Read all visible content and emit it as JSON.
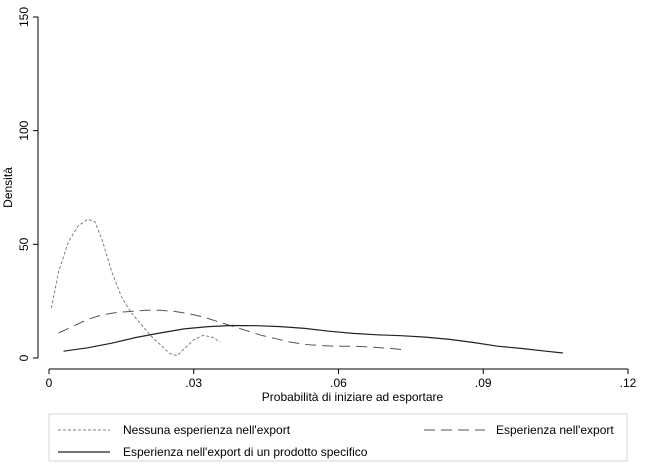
{
  "chart_data": {
    "type": "line",
    "title": "",
    "xlabel": "Probabilità di iniziare ad esportare",
    "ylabel": "Densità",
    "xlim": [
      0,
      0.12
    ],
    "ylim": [
      0,
      150
    ],
    "x_ticks": [
      0,
      0.03,
      0.06,
      0.09,
      0.12
    ],
    "x_tick_labels": [
      "0",
      ".03",
      ".06",
      ".09",
      ".12"
    ],
    "y_ticks": [
      0,
      50,
      100,
      150
    ],
    "y_tick_labels": [
      "0",
      "50",
      "100",
      "150"
    ],
    "grid": false,
    "legend_position": "bottom",
    "series": [
      {
        "name": "Nessuna esperienza nell'export",
        "style": "short-dash",
        "color": "#808080",
        "x": [
          0.0005,
          0.002,
          0.004,
          0.006,
          0.008,
          0.0095,
          0.011,
          0.013,
          0.015,
          0.017,
          0.019,
          0.021,
          0.023,
          0.025,
          0.0265,
          0.028,
          0.03,
          0.032,
          0.034,
          0.0355
        ],
        "y": [
          22,
          38,
          51,
          58,
          61,
          60,
          52,
          38,
          27,
          20,
          15,
          10,
          6,
          2,
          1,
          4,
          8,
          10,
          9,
          7
        ]
      },
      {
        "name": "Esperienza nell'export",
        "style": "long-dash",
        "color": "#555555",
        "x": [
          0.002,
          0.005,
          0.008,
          0.011,
          0.014,
          0.017,
          0.02,
          0.023,
          0.026,
          0.029,
          0.032,
          0.035,
          0.038,
          0.041,
          0.044,
          0.047,
          0.05,
          0.053,
          0.056,
          0.059,
          0.062,
          0.065,
          0.068,
          0.071,
          0.074
        ],
        "y": [
          11,
          14,
          17,
          19,
          20,
          20.5,
          21,
          21,
          20.5,
          19.5,
          18,
          16,
          14,
          12,
          10,
          8.5,
          7,
          6,
          5.5,
          5.2,
          5.2,
          5,
          4.6,
          4.2,
          3.5
        ]
      },
      {
        "name": "Esperienza nell'export di un prodotto specifico",
        "style": "solid",
        "color": "#222222",
        "x": [
          0.003,
          0.008,
          0.013,
          0.018,
          0.023,
          0.028,
          0.033,
          0.038,
          0.043,
          0.048,
          0.053,
          0.058,
          0.063,
          0.068,
          0.073,
          0.078,
          0.083,
          0.088,
          0.093,
          0.098,
          0.103,
          0.1065
        ],
        "y": [
          3,
          4.5,
          6.5,
          9,
          11,
          12.8,
          13.8,
          14.3,
          14.2,
          13.8,
          13,
          11.8,
          10.8,
          10.2,
          9.8,
          9.2,
          8.2,
          6.8,
          5.2,
          4.2,
          3,
          2.2
        ]
      }
    ]
  }
}
